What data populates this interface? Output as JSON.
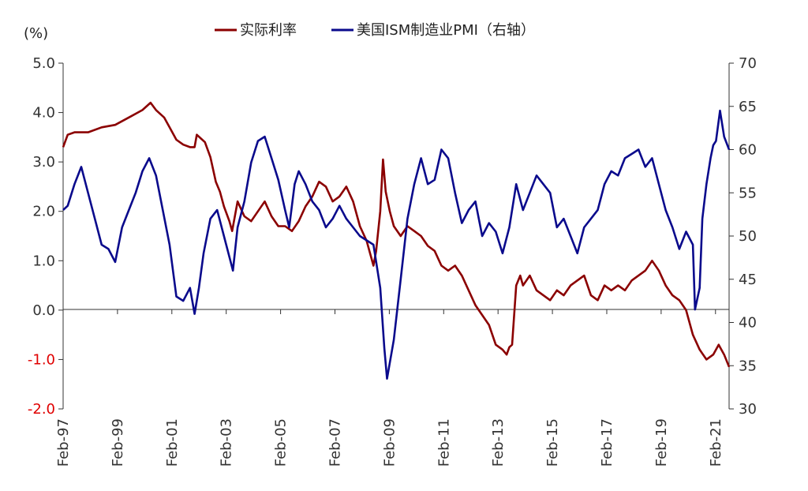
{
  "chart_data": {
    "type": "line",
    "unit_label": "(%)",
    "colors": {
      "real_rate": "#8b0000",
      "pmi": "#0a0a8c",
      "negative_tick": "#e00000",
      "axis": "#333333"
    },
    "left_axis": {
      "ylim": [
        -2,
        5
      ],
      "ticks": [
        "5.0",
        "4.0",
        "3.0",
        "2.0",
        "1.0",
        "0.0",
        "-1.0",
        "-2.0"
      ],
      "tick_values": [
        5,
        4,
        3,
        2,
        1,
        0,
        -1,
        -2
      ]
    },
    "right_axis": {
      "ylim": [
        30,
        70
      ],
      "ticks": [
        "70",
        "65",
        "60",
        "55",
        "50",
        "45",
        "40",
        "35",
        "30"
      ],
      "tick_values": [
        70,
        65,
        60,
        55,
        50,
        45,
        40,
        35,
        30
      ]
    },
    "x_axis": {
      "ticks": [
        "Feb-97",
        "Feb-99",
        "Feb-01",
        "Feb-03",
        "Feb-05",
        "Feb-07",
        "Feb-09",
        "Feb-11",
        "Feb-13",
        "Feb-15",
        "Feb-17",
        "Feb-19",
        "Feb-21"
      ],
      "tick_years": [
        1997.083,
        1999.083,
        2001.083,
        2003.083,
        2005.083,
        2007.083,
        2009.083,
        2011.083,
        2013.083,
        2015.083,
        2017.083,
        2019.083,
        2021.083
      ],
      "xlim": [
        1997.083,
        2021.583
      ]
    },
    "series": [
      {
        "name": "实际利率",
        "axis": "left",
        "points": [
          [
            1997.083,
            3.3
          ],
          [
            1997.25,
            3.55
          ],
          [
            1997.5,
            3.6
          ],
          [
            1998.0,
            3.6
          ],
          [
            1998.5,
            3.7
          ],
          [
            1999.0,
            3.75
          ],
          [
            1999.5,
            3.9
          ],
          [
            1999.83,
            4.0
          ],
          [
            2000.0,
            4.05
          ],
          [
            2000.3,
            4.2
          ],
          [
            2000.5,
            4.05
          ],
          [
            2000.8,
            3.9
          ],
          [
            2001.0,
            3.7
          ],
          [
            2001.25,
            3.45
          ],
          [
            2001.5,
            3.35
          ],
          [
            2001.75,
            3.3
          ],
          [
            2001.92,
            3.3
          ],
          [
            2002.0,
            3.55
          ],
          [
            2002.3,
            3.4
          ],
          [
            2002.5,
            3.1
          ],
          [
            2002.7,
            2.6
          ],
          [
            2002.85,
            2.4
          ],
          [
            2003.0,
            2.1
          ],
          [
            2003.2,
            1.8
          ],
          [
            2003.3,
            1.6
          ],
          [
            2003.5,
            2.2
          ],
          [
            2003.75,
            1.9
          ],
          [
            2004.0,
            1.8
          ],
          [
            2004.25,
            2.0
          ],
          [
            2004.5,
            2.2
          ],
          [
            2004.75,
            1.9
          ],
          [
            2005.0,
            1.7
          ],
          [
            2005.25,
            1.7
          ],
          [
            2005.5,
            1.6
          ],
          [
            2005.75,
            1.8
          ],
          [
            2006.0,
            2.1
          ],
          [
            2006.25,
            2.3
          ],
          [
            2006.5,
            2.6
          ],
          [
            2006.75,
            2.5
          ],
          [
            2007.0,
            2.2
          ],
          [
            2007.25,
            2.3
          ],
          [
            2007.5,
            2.5
          ],
          [
            2007.75,
            2.2
          ],
          [
            2008.0,
            1.7
          ],
          [
            2008.25,
            1.4
          ],
          [
            2008.5,
            0.9
          ],
          [
            2008.6,
            1.2
          ],
          [
            2008.75,
            2.0
          ],
          [
            2008.85,
            3.05
          ],
          [
            2008.95,
            2.4
          ],
          [
            2009.1,
            2.0
          ],
          [
            2009.25,
            1.7
          ],
          [
            2009.5,
            1.5
          ],
          [
            2009.75,
            1.7
          ],
          [
            2010.0,
            1.6
          ],
          [
            2010.25,
            1.5
          ],
          [
            2010.5,
            1.3
          ],
          [
            2010.75,
            1.2
          ],
          [
            2011.0,
            0.9
          ],
          [
            2011.25,
            0.8
          ],
          [
            2011.5,
            0.9
          ],
          [
            2011.75,
            0.7
          ],
          [
            2012.0,
            0.4
          ],
          [
            2012.25,
            0.1
          ],
          [
            2012.5,
            -0.1
          ],
          [
            2012.75,
            -0.3
          ],
          [
            2013.0,
            -0.7
          ],
          [
            2013.25,
            -0.8
          ],
          [
            2013.4,
            -0.9
          ],
          [
            2013.5,
            -0.75
          ],
          [
            2013.6,
            -0.7
          ],
          [
            2013.75,
            0.5
          ],
          [
            2013.9,
            0.7
          ],
          [
            2014.0,
            0.5
          ],
          [
            2014.25,
            0.7
          ],
          [
            2014.5,
            0.4
          ],
          [
            2014.75,
            0.3
          ],
          [
            2015.0,
            0.2
          ],
          [
            2015.25,
            0.4
          ],
          [
            2015.5,
            0.3
          ],
          [
            2015.75,
            0.5
          ],
          [
            2016.0,
            0.6
          ],
          [
            2016.25,
            0.7
          ],
          [
            2016.5,
            0.3
          ],
          [
            2016.75,
            0.2
          ],
          [
            2017.0,
            0.5
          ],
          [
            2017.25,
            0.4
          ],
          [
            2017.5,
            0.5
          ],
          [
            2017.75,
            0.4
          ],
          [
            2018.0,
            0.6
          ],
          [
            2018.25,
            0.7
          ],
          [
            2018.5,
            0.8
          ],
          [
            2018.75,
            1.0
          ],
          [
            2019.0,
            0.8
          ],
          [
            2019.25,
            0.5
          ],
          [
            2019.5,
            0.3
          ],
          [
            2019.75,
            0.2
          ],
          [
            2020.0,
            0.0
          ],
          [
            2020.25,
            -0.5
          ],
          [
            2020.5,
            -0.8
          ],
          [
            2020.75,
            -1.0
          ],
          [
            2021.0,
            -0.9
          ],
          [
            2021.2,
            -0.7
          ],
          [
            2021.4,
            -0.9
          ],
          [
            2021.583,
            -1.15
          ]
        ]
      },
      {
        "name": "美国ISM制造业PMI（右轴）",
        "axis": "right",
        "points": [
          [
            1997.083,
            53.0
          ],
          [
            1997.25,
            53.5
          ],
          [
            1997.5,
            56.0
          ],
          [
            1997.75,
            58.0
          ],
          [
            1998.0,
            55.0
          ],
          [
            1998.25,
            52.0
          ],
          [
            1998.5,
            49.0
          ],
          [
            1998.75,
            48.5
          ],
          [
            1999.0,
            47.0
          ],
          [
            1999.25,
            51.0
          ],
          [
            1999.5,
            53.0
          ],
          [
            1999.75,
            55.0
          ],
          [
            2000.0,
            57.5
          ],
          [
            2000.25,
            59.0
          ],
          [
            2000.5,
            57.0
          ],
          [
            2000.75,
            53.0
          ],
          [
            2001.0,
            49.0
          ],
          [
            2001.25,
            43.0
          ],
          [
            2001.5,
            42.5
          ],
          [
            2001.75,
            44.0
          ],
          [
            2001.92,
            41.0
          ],
          [
            2002.08,
            44.0
          ],
          [
            2002.25,
            48.0
          ],
          [
            2002.5,
            52.0
          ],
          [
            2002.75,
            53.0
          ],
          [
            2003.0,
            50.0
          ],
          [
            2003.25,
            47.0
          ],
          [
            2003.33,
            46.0
          ],
          [
            2003.5,
            51.0
          ],
          [
            2003.75,
            54.0
          ],
          [
            2004.0,
            58.5
          ],
          [
            2004.25,
            61.0
          ],
          [
            2004.5,
            61.5
          ],
          [
            2004.75,
            59.0
          ],
          [
            2005.0,
            56.5
          ],
          [
            2005.25,
            53.0
          ],
          [
            2005.4,
            51.0
          ],
          [
            2005.6,
            56.0
          ],
          [
            2005.75,
            57.5
          ],
          [
            2006.0,
            56.0
          ],
          [
            2006.25,
            54.0
          ],
          [
            2006.5,
            53.0
          ],
          [
            2006.75,
            51.0
          ],
          [
            2007.0,
            52.0
          ],
          [
            2007.25,
            53.5
          ],
          [
            2007.5,
            52.0
          ],
          [
            2007.75,
            51.0
          ],
          [
            2008.0,
            50.0
          ],
          [
            2008.25,
            49.5
          ],
          [
            2008.5,
            49.0
          ],
          [
            2008.75,
            44.0
          ],
          [
            2008.9,
            37.0
          ],
          [
            2009.0,
            33.5
          ],
          [
            2009.25,
            38.0
          ],
          [
            2009.5,
            45.0
          ],
          [
            2009.75,
            52.0
          ],
          [
            2010.0,
            56.0
          ],
          [
            2010.25,
            59.0
          ],
          [
            2010.5,
            56.0
          ],
          [
            2010.75,
            56.5
          ],
          [
            2011.0,
            60.0
          ],
          [
            2011.25,
            59.0
          ],
          [
            2011.5,
            55.0
          ],
          [
            2011.75,
            51.5
          ],
          [
            2012.0,
            53.0
          ],
          [
            2012.25,
            54.0
          ],
          [
            2012.5,
            50.0
          ],
          [
            2012.75,
            51.5
          ],
          [
            2013.0,
            50.5
          ],
          [
            2013.25,
            48.0
          ],
          [
            2013.5,
            51.0
          ],
          [
            2013.75,
            56.0
          ],
          [
            2014.0,
            53.0
          ],
          [
            2014.25,
            55.0
          ],
          [
            2014.5,
            57.0
          ],
          [
            2014.75,
            56.0
          ],
          [
            2015.0,
            55.0
          ],
          [
            2015.25,
            51.0
          ],
          [
            2015.5,
            52.0
          ],
          [
            2015.75,
            50.0
          ],
          [
            2016.0,
            48.0
          ],
          [
            2016.25,
            51.0
          ],
          [
            2016.5,
            52.0
          ],
          [
            2016.75,
            53.0
          ],
          [
            2017.0,
            56.0
          ],
          [
            2017.25,
            57.5
          ],
          [
            2017.5,
            57.0
          ],
          [
            2017.75,
            59.0
          ],
          [
            2018.0,
            59.5
          ],
          [
            2018.25,
            60.0
          ],
          [
            2018.5,
            58.0
          ],
          [
            2018.75,
            59.0
          ],
          [
            2019.0,
            56.0
          ],
          [
            2019.25,
            53.0
          ],
          [
            2019.5,
            51.0
          ],
          [
            2019.75,
            48.5
          ],
          [
            2020.0,
            50.5
          ],
          [
            2020.25,
            49.0
          ],
          [
            2020.33,
            41.5
          ],
          [
            2020.5,
            44.0
          ],
          [
            2020.6,
            52.0
          ],
          [
            2020.75,
            56.0
          ],
          [
            2020.9,
            59.0
          ],
          [
            2021.0,
            60.5
          ],
          [
            2021.1,
            61.0
          ],
          [
            2021.25,
            64.5
          ],
          [
            2021.4,
            61.5
          ],
          [
            2021.583,
            60.0
          ]
        ]
      }
    ]
  }
}
